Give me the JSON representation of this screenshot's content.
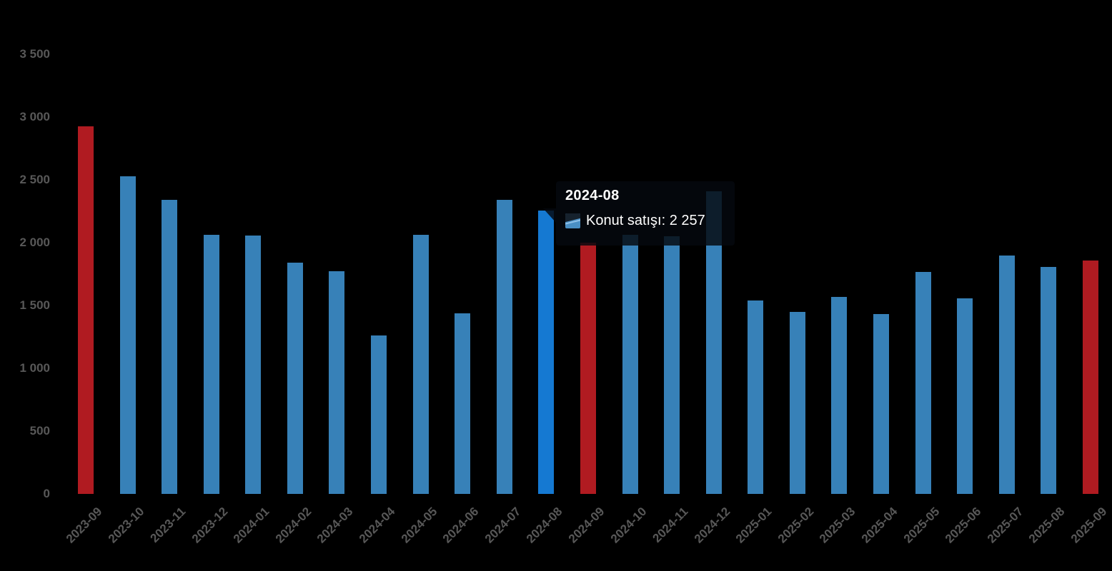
{
  "colors": {
    "background": "#000000",
    "bar_blue": "#3781b8",
    "bar_blue_hover": "#1579d2",
    "bar_red": "#b01b21",
    "axis_label": "#585858",
    "tooltip_bg": "rgba(5,9,14,0.83)",
    "tooltip_text": "#ffffff",
    "tooltip_marker_blue": "#4a8fc4",
    "tooltip_marker_dark": "#16222e",
    "tooltip_marker_slash": "#8fc0e8"
  },
  "tooltip": {
    "title": "2024-08",
    "value_text": "Konut satışı: 2 257",
    "value": "2 257",
    "series_label": "Konut satışı"
  },
  "chart_data": {
    "type": "bar",
    "title": "",
    "xlabel": "",
    "ylabel": "",
    "series_name": "Konut satışı",
    "categories": [
      "2023-09",
      "2023-10",
      "2023-11",
      "2023-12",
      "2024-01",
      "2024-02",
      "2024-03",
      "2024-04",
      "2024-05",
      "2024-06",
      "2024-07",
      "2024-08",
      "2024-09",
      "2024-10",
      "2024-11",
      "2024-12",
      "2025-01",
      "2025-02",
      "2025-03",
      "2025-04",
      "2025-05",
      "2025-06",
      "2025-07",
      "2025-08",
      "2025-09"
    ],
    "values": [
      2925,
      2530,
      2340,
      2060,
      2055,
      1840,
      1770,
      1260,
      2060,
      1435,
      2340,
      2257,
      2000,
      2060,
      2050,
      2410,
      1540,
      1450,
      1570,
      1430,
      1765,
      1555,
      1900,
      1805,
      1860
    ],
    "red_indices": [
      0,
      12,
      24
    ],
    "hovered_index": 11,
    "hovered_value": 2257,
    "ylim": [
      0,
      3500
    ],
    "y_ticks": [
      {
        "value": 0,
        "label": "0"
      },
      {
        "value": 500,
        "label": "500"
      },
      {
        "value": 1000,
        "label": "1 000"
      },
      {
        "value": 1500,
        "label": "1 500"
      },
      {
        "value": 2000,
        "label": "2 000"
      },
      {
        "value": 2500,
        "label": "2 500"
      },
      {
        "value": 3000,
        "label": "3 000"
      },
      {
        "value": 3500,
        "label": "3 500"
      }
    ],
    "grid": false,
    "legend": false,
    "x_tick_rotation": -45
  }
}
